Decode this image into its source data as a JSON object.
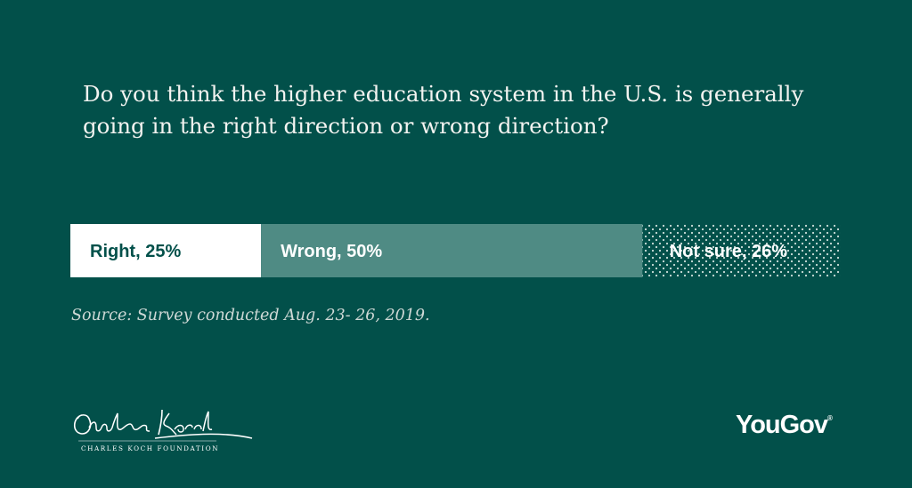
{
  "question": "Do you think the higher education system in the U.S. is generally going in the right direction or wrong direction?",
  "source": "Source: Survey conducted Aug. 23- 26, 2019.",
  "colors": {
    "background": "#02504a",
    "right": "#ffffff",
    "wrong": "#4f8b84",
    "not_sure_dots": "#cfe0dc"
  },
  "chart_data": {
    "type": "bar",
    "orientation": "horizontal-stacked",
    "title": "Do you think the higher education system in the U.S. is generally going in the right direction or wrong direction?",
    "series": [
      {
        "name": "Right",
        "value": 25,
        "label": "Right, 25%"
      },
      {
        "name": "Wrong",
        "value": 50,
        "label": "Wrong, 50%"
      },
      {
        "name": "Not sure",
        "value": 26,
        "label": "Not sure, 26%"
      }
    ],
    "unit": "%"
  },
  "logos": {
    "left_signature": "Charles Koch",
    "left_text": "CHARLES KOCH FOUNDATION",
    "right_text": "YouGov",
    "right_mark": "®"
  }
}
